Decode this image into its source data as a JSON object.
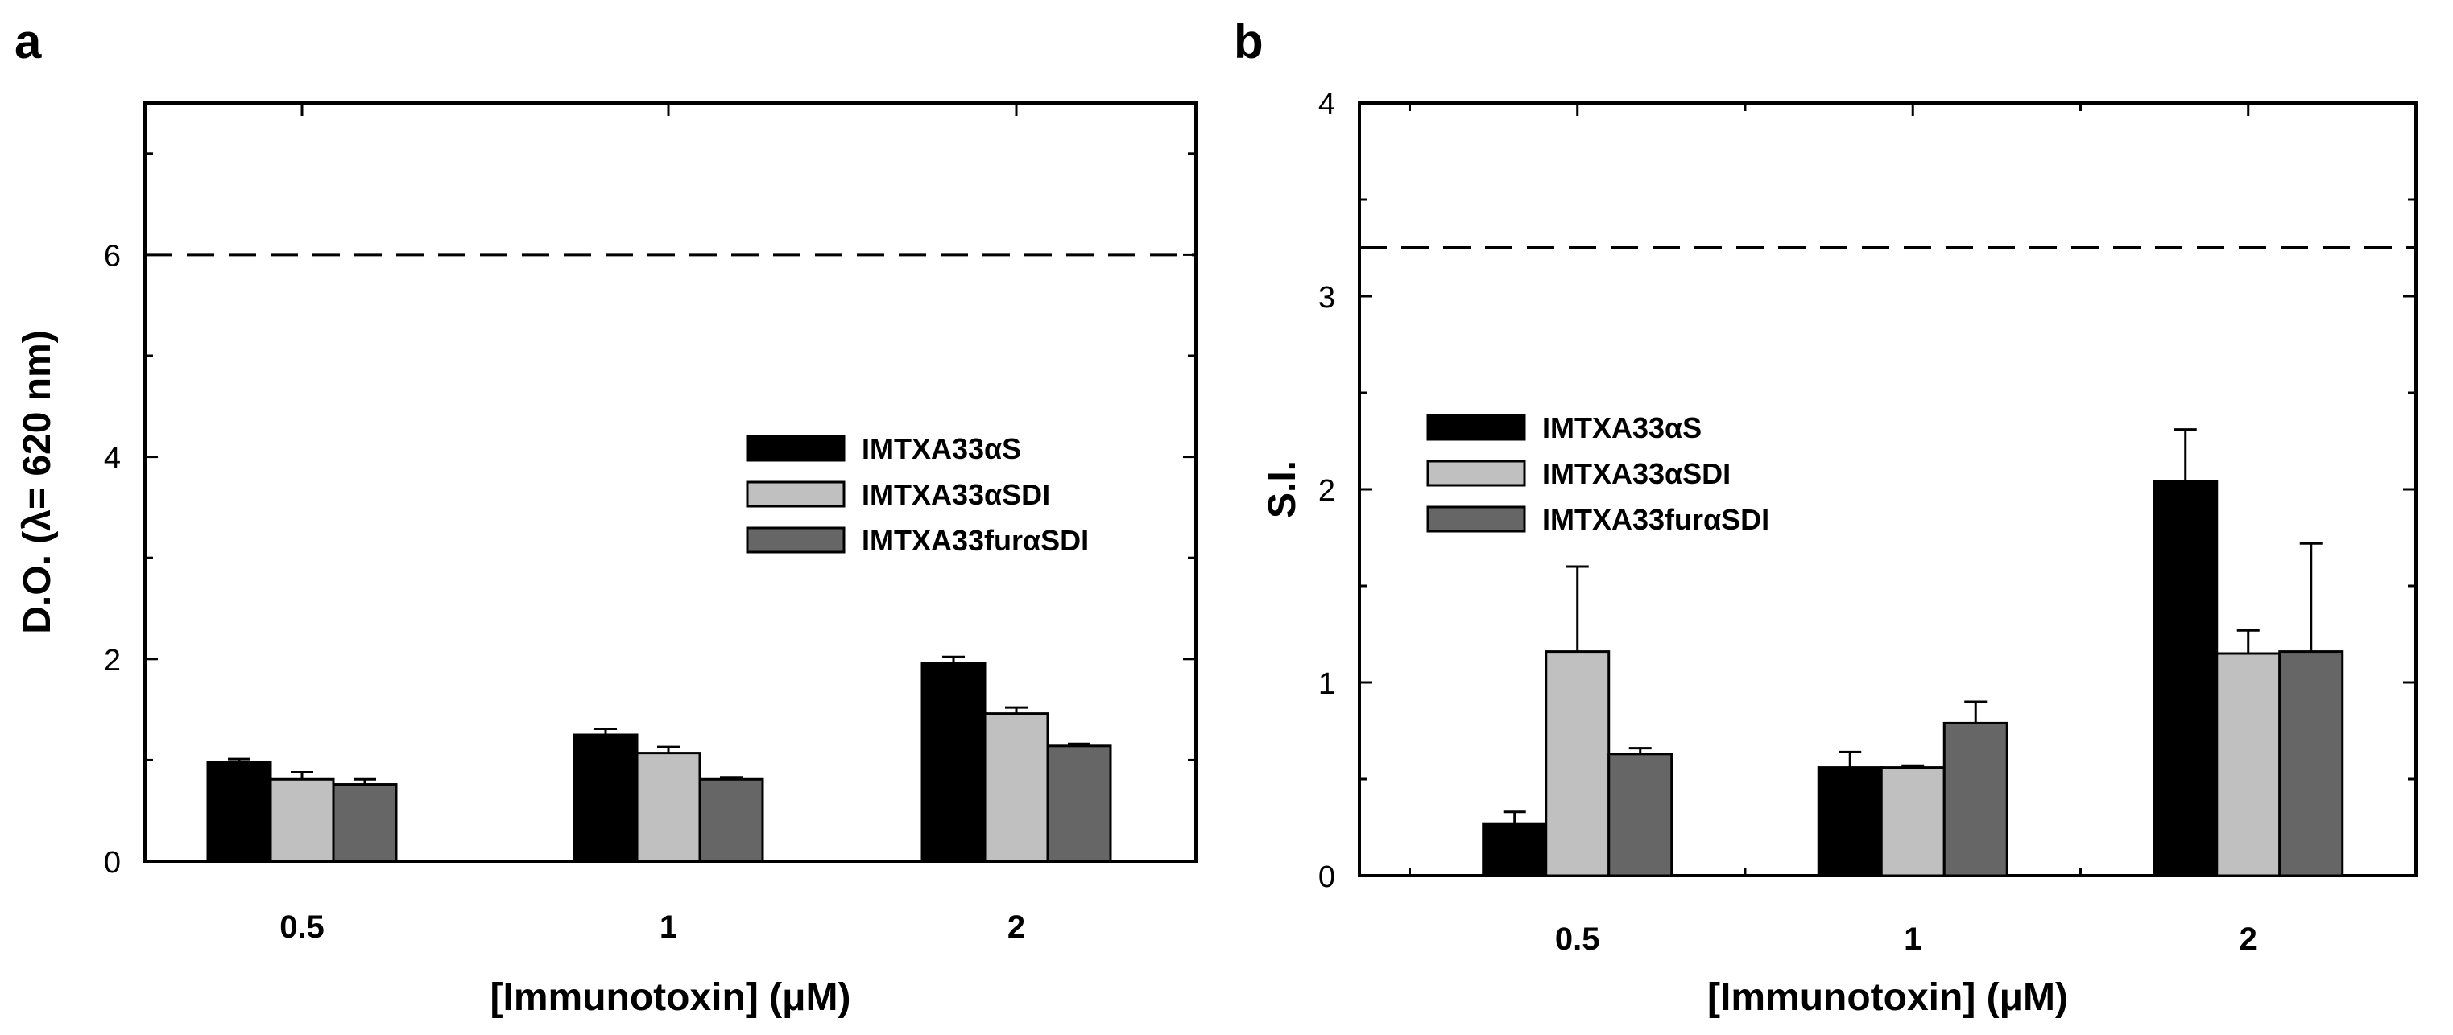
{
  "panels": {
    "a": {
      "label": "a"
    },
    "b": {
      "label": "b"
    }
  },
  "chart_data": [
    {
      "panel": "a",
      "type": "bar",
      "title": "",
      "xlabel": "[Immunotoxin] (μM)",
      "ylabel": "D.O. (λ= 620 nm)",
      "categories": [
        "0.5",
        "1",
        "2"
      ],
      "ylim": [
        0,
        7.5
      ],
      "yticks": [
        0,
        2,
        4,
        6
      ],
      "reference_line": 6,
      "legend_position": "center-right",
      "grid": false,
      "series": [
        {
          "name": "IMTXA33αS",
          "color": "#000000",
          "values": [
            0.98,
            1.25,
            1.96
          ],
          "errors": [
            0.03,
            0.06,
            0.06
          ]
        },
        {
          "name": "IMTXA33αSDI",
          "color": "#c0c0c0",
          "values": [
            0.81,
            1.07,
            1.46
          ],
          "errors": [
            0.07,
            0.06,
            0.06
          ]
        },
        {
          "name": "IMTXA33furαSDI",
          "color": "#666666",
          "values": [
            0.76,
            0.81,
            1.14
          ],
          "errors": [
            0.05,
            0.02,
            0.02
          ]
        }
      ]
    },
    {
      "panel": "b",
      "type": "bar",
      "title": "",
      "xlabel": "[Immunotoxin] (μM)",
      "ylabel": "S.I.",
      "categories": [
        "0.5",
        "1",
        "2"
      ],
      "xlim": [
        -0.15,
        3.0
      ],
      "ylim": [
        0,
        4
      ],
      "yticks": [
        0,
        1,
        2,
        3,
        4
      ],
      "reference_line": 3.25,
      "legend_position": "center-left",
      "grid": false,
      "series": [
        {
          "name": "IMTXA33αS",
          "color": "#000000",
          "values": [
            0.27,
            0.56,
            2.04
          ],
          "errors": [
            0.06,
            0.08,
            0.27
          ]
        },
        {
          "name": "IMTXA33αSDI",
          "color": "#c0c0c0",
          "values": [
            1.16,
            0.56,
            1.15
          ],
          "errors": [
            0.44,
            0.01,
            0.12
          ]
        },
        {
          "name": "IMTXA33furαSDI",
          "color": "#666666",
          "values": [
            0.63,
            0.79,
            1.16
          ],
          "errors": [
            0.03,
            0.11,
            0.56
          ]
        }
      ]
    }
  ]
}
